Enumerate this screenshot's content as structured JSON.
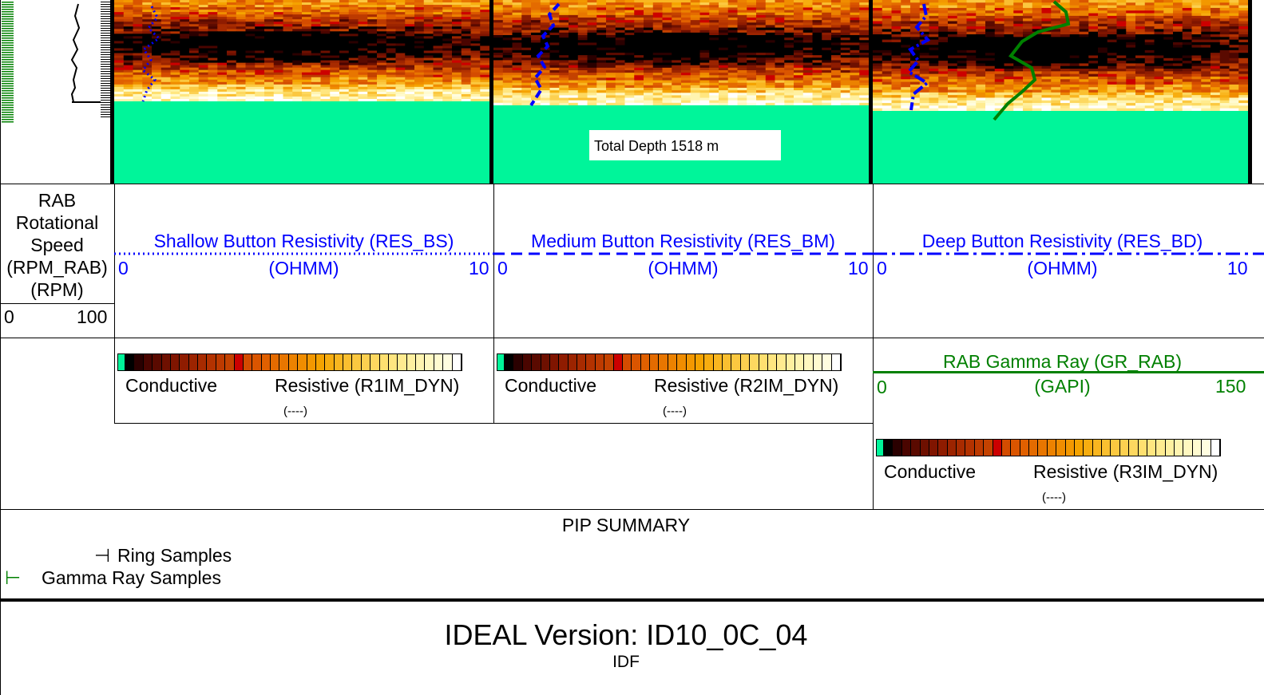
{
  "depth_marker": {
    "label": "Total Depth 1518 m"
  },
  "rpm_track": {
    "title_lines": [
      "RAB",
      "Rotational",
      "Speed",
      "(RPM_RAB)",
      "(RPM)"
    ],
    "scale_min": "0",
    "scale_max": "100"
  },
  "resistivity_tracks": [
    {
      "title": "Shallow Button Resistivity (RES_BS)",
      "unit": "(OHMM)",
      "scale_min": "0",
      "scale_max": "10",
      "line_style": "dotted"
    },
    {
      "title": "Medium Button Resistivity (RES_BM)",
      "unit": "(OHMM)",
      "scale_min": "0",
      "scale_max": "10",
      "line_style": "dashed"
    },
    {
      "title": "Deep Button Resistivity (RES_BD)",
      "unit": "(OHMM)",
      "scale_min": "0",
      "scale_max": "10",
      "line_style": "dash-dot"
    }
  ],
  "image_legends": [
    {
      "left": "Conductive",
      "right": "Resistive (R1IM_DYN)",
      "unit": "(----)"
    },
    {
      "left": "Conductive",
      "right": "Resistive (R2IM_DYN)",
      "unit": "(----)"
    },
    {
      "left": "Conductive",
      "right": "Resistive (R3IM_DYN)",
      "unit": "(----)"
    }
  ],
  "gamma_ray": {
    "title": "RAB Gamma Ray (GR_RAB)",
    "unit": "(GAPI)",
    "scale_min": "0",
    "scale_max": "150"
  },
  "pip_summary": {
    "title": "PIP SUMMARY",
    "items": [
      {
        "symbol": "⊣",
        "label": "Ring Samples",
        "color": "#000000"
      },
      {
        "symbol": "⊢",
        "label": "Gamma Ray Samples",
        "color": "#008000"
      }
    ]
  },
  "footer": {
    "version": "IDEAL Version: ID10_0C_04",
    "sub": "IDF"
  },
  "colors": {
    "curve_blue": "#0000ff",
    "gamma_green": "#008000",
    "below_td_fill": "#00f59a",
    "palette": [
      "#00f59a",
      "#000000",
      "#2a0000",
      "#4a0500",
      "#5a0a00",
      "#6e1000",
      "#801500",
      "#8f1c00",
      "#9c2400",
      "#a82b00",
      "#b33200",
      "#bd3a00",
      "#c44200",
      "#cc0000",
      "#d44c00",
      "#da5500",
      "#e06000",
      "#e46b00",
      "#e87600",
      "#ec8200",
      "#f08d00",
      "#f39800",
      "#f5a300",
      "#f7ad10",
      "#f9b620",
      "#fabf30",
      "#fbc840",
      "#fcd050",
      "#fdd860",
      "#fee070",
      "#ffe680",
      "#ffeb90",
      "#fff0a0",
      "#fff4b0",
      "#fff8c0",
      "#fffbd0",
      "#fffde0",
      "#ffffff"
    ]
  }
}
